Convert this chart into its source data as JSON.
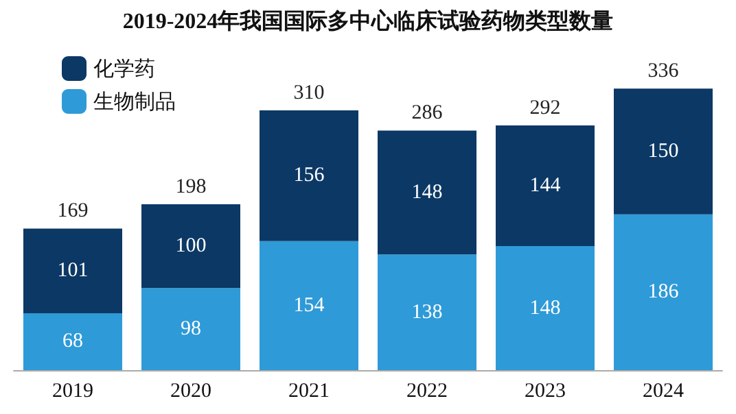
{
  "chart_data": {
    "type": "bar",
    "title": "2019-2024年我国国际多中心临床试验药物类型数量",
    "categories": [
      "2019",
      "2020",
      "2021",
      "2022",
      "2023",
      "2024"
    ],
    "stacked": true,
    "data_labels": true,
    "legend": "top left",
    "series": [
      {
        "name": "生物制品",
        "color": "#2e9ad8",
        "values": [
          68,
          98,
          154,
          138,
          148,
          186
        ]
      },
      {
        "name": "化学药",
        "color": "#0c3865",
        "values": [
          101,
          100,
          156,
          148,
          144,
          150
        ]
      }
    ],
    "totals": [
      "169",
      "198",
      "310",
      "286",
      "292",
      "336"
    ]
  }
}
